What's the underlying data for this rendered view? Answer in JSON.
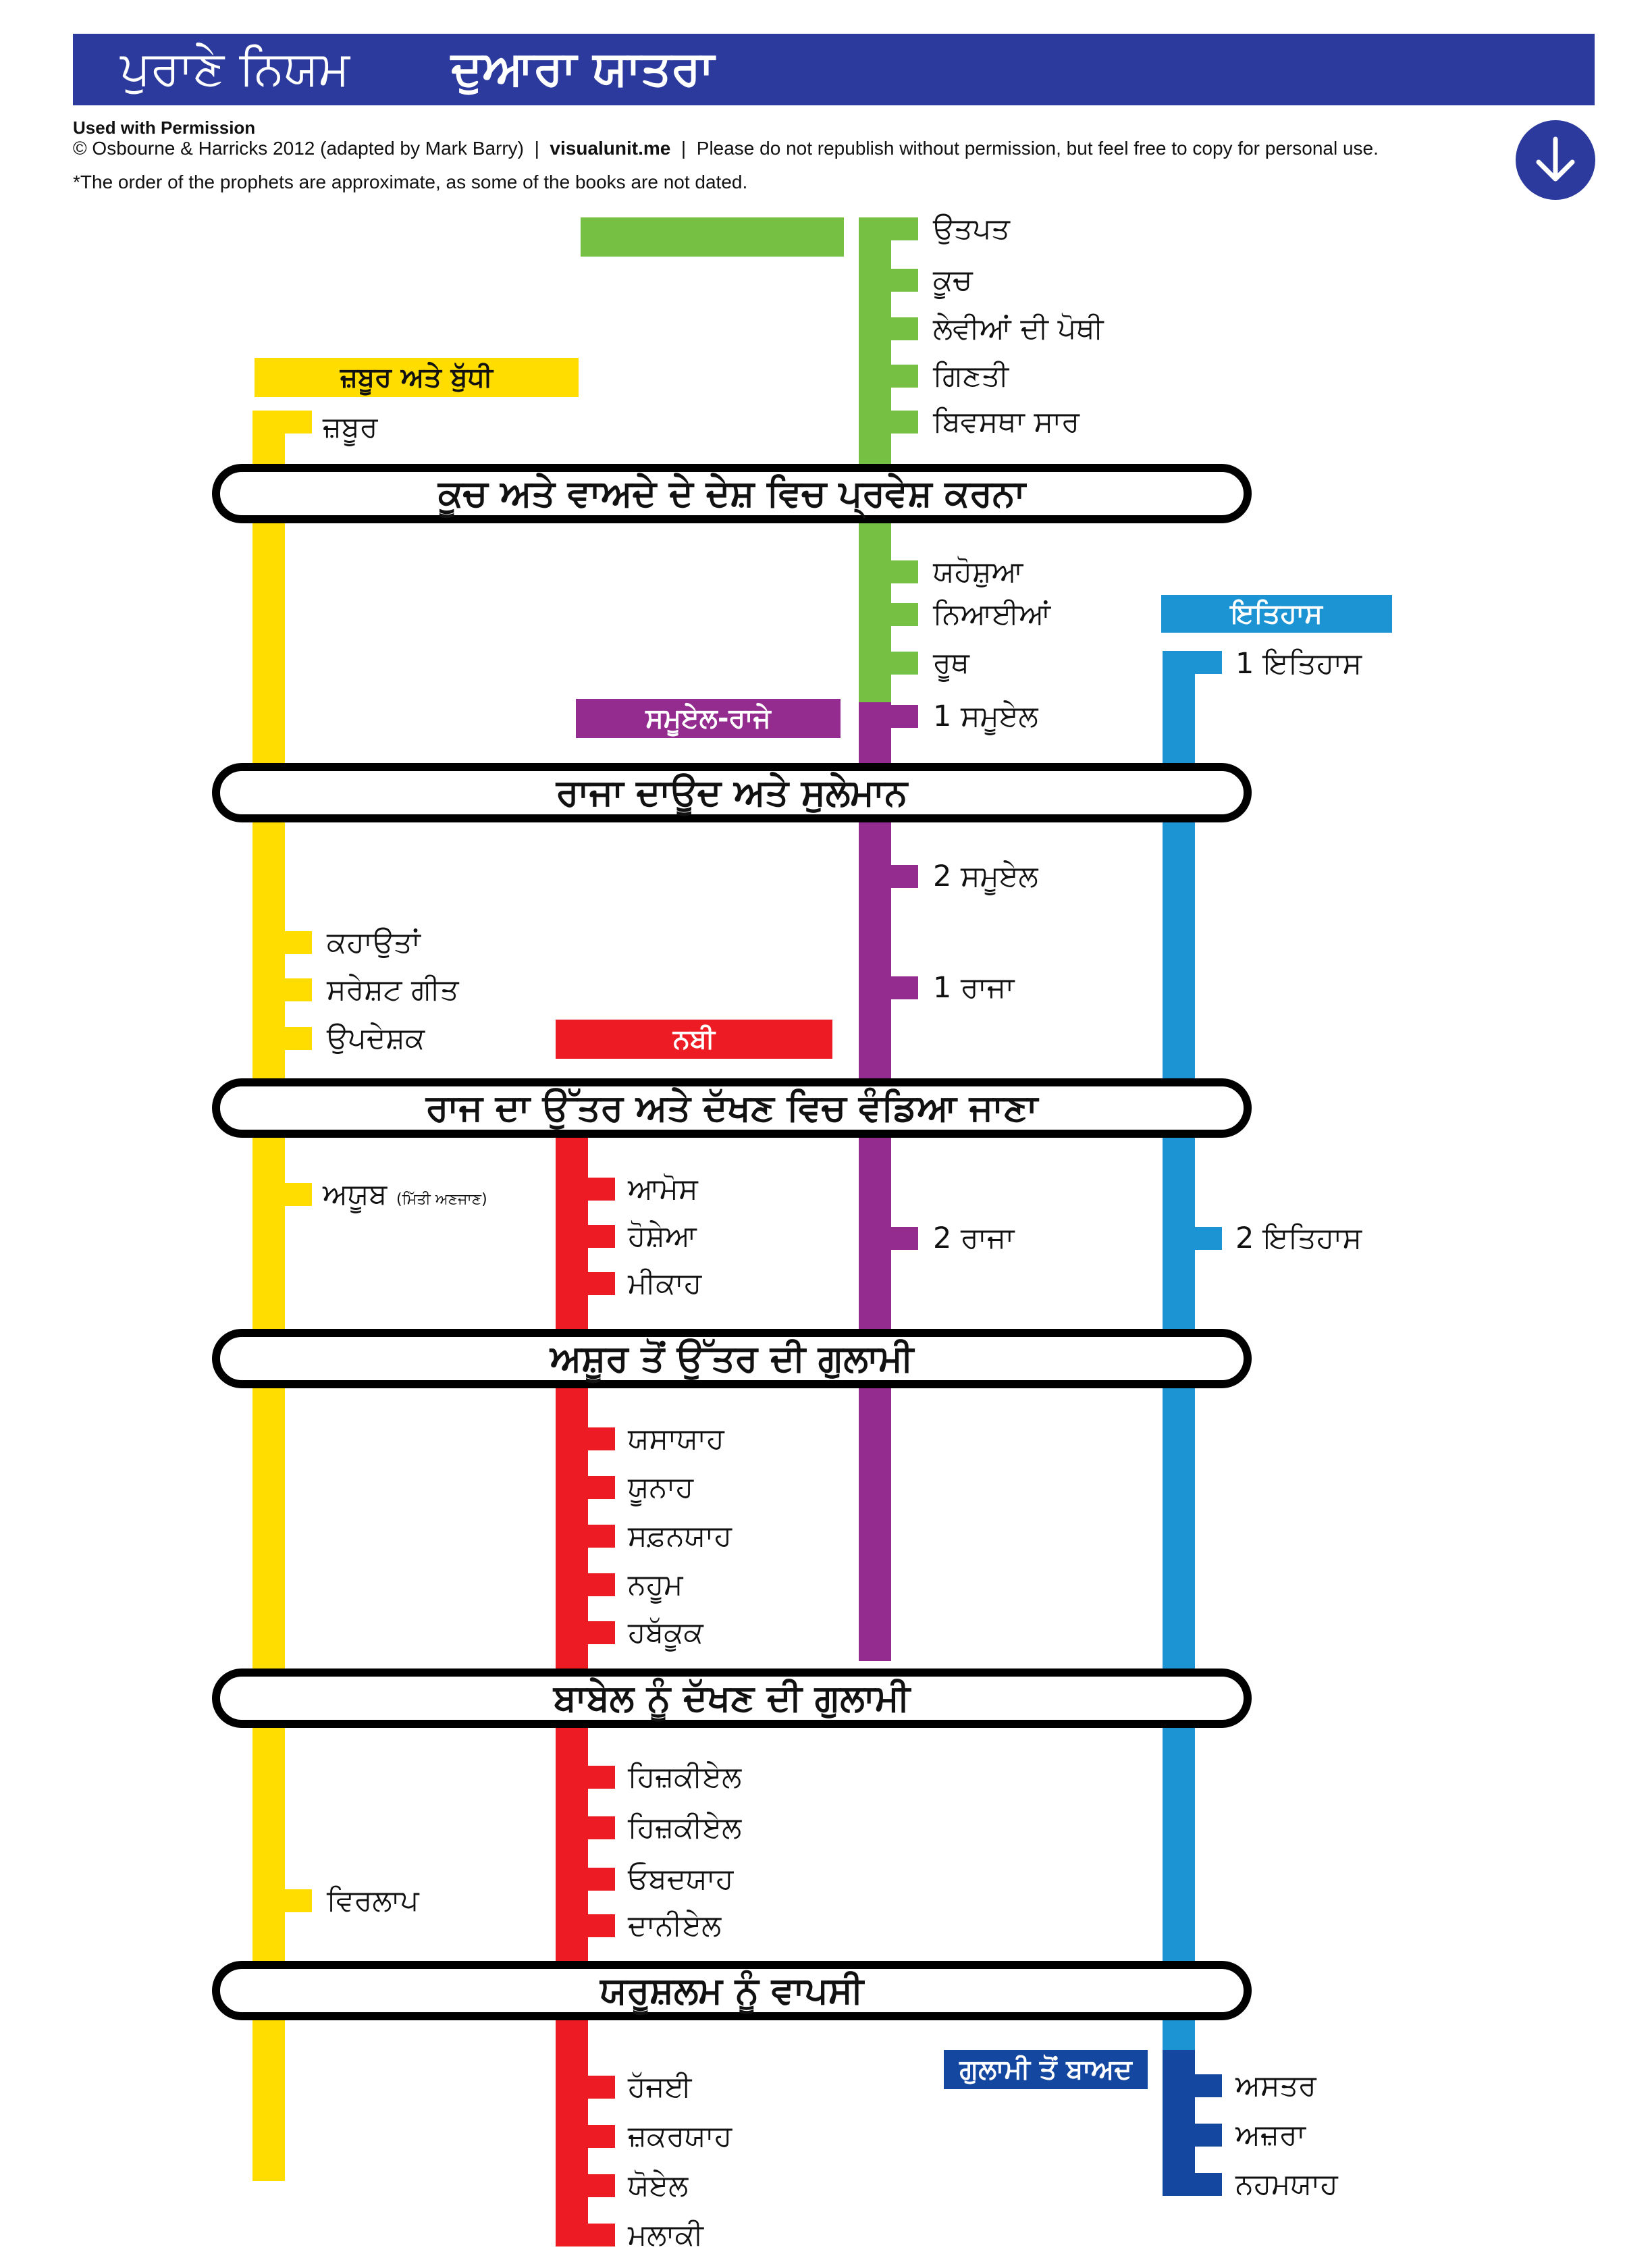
{
  "header": {
    "title_main": "ਪੁਰਾਣੇ ਨਿਯਮ",
    "title_sub": "ਦੁਆਰਾ ਯਾਤਰਾ"
  },
  "credits": {
    "used_permission": "Used with Permission",
    "copyright": "© Osbourne & Harricks 2012 (adapted by Mark Barry)",
    "separator": "|",
    "site": "visualunit.me",
    "notice": "Please do not republish without permission, but feel free to copy for personal use.",
    "prophet_note": "*The order of the prophets are approximate, as some of the books are not dated."
  },
  "down_button": {
    "icon": "arrow-down-icon"
  },
  "colors": {
    "header": "#2b3a9c",
    "law_history": "#76c043",
    "wisdom": "#ffdd00",
    "samuel_kings": "#932c8e",
    "prophets": "#ed1c24",
    "chronicles": "#1c93d2",
    "post_exile": "#1447a0",
    "event_border": "#000000"
  },
  "sections": {
    "law": "",
    "wisdom": "ਜ਼ਬੂਰ ਅਤੇ ਬੁੱਧੀ",
    "chronicles": "ਇਤਿਹਾਸ",
    "samuel_kings": "ਸਮੂਏਲ-ਰਾਜੇ",
    "prophets": "ਨਬੀ",
    "post_exile": "ਗੁਲਾਮੀ ਤੋਂ ਬਾਅਦ"
  },
  "events": [
    "ਕੂਚ ਅਤੇ ਵਾਅਦੇ ਦੇ ਦੇਸ਼ ਵਿਚ ਪ੍ਰਵੇਸ਼ ਕਰਨਾ",
    "ਰਾਜਾ ਦਾਊਦ ਅਤੇ ਸੁਲੇਮਾਨ",
    "ਰਾਜ ਦਾ ਉੱਤਰ ਅਤੇ ਦੱਖਣ ਵਿਚ ਵੰਡਿਆ ਜਾਣਾ",
    "ਅਸ਼ੂਰ ਤੋਂ ਉੱਤਰ ਦੀ ਗੁਲਾਮੀ",
    "ਬਾਬੇਲ ਨੂੰ ਦੱਖਣ ਦੀ ਗੁਲਾਮੀ",
    "ਯਰੂਸ਼ਲਮ ਨੂੰ ਵਾਪਸੀ"
  ],
  "books": {
    "law_history": [
      "ਉਤਪਤ",
      "ਕੂਚ",
      "ਲੇਵੀਆਂ ਦੀ ਪੋਥੀ",
      "ਗਿਣਤੀ",
      "ਬਿਵਸਥਾ ਸਾਰ",
      "ਯਹੋਸ਼ੁਆ",
      "ਨਿਆਈਆਂ",
      "ਰੂਥ"
    ],
    "wisdom": [
      "ਜ਼ਬੂਰ",
      "ਕਹਾਉਤਾਂ",
      "ਸਰੇਸ਼ਟ ਗੀਤ",
      "ਉਪਦੇਸ਼ਕ",
      "ਅਯੂਬ",
      "ਵਿਰਲਾਪ"
    ],
    "job_note": "(ਮਿੱਤੀ ਅਣਜਾਣ)",
    "samuel_kings": [
      "1 ਸਮੂਏਲ",
      "2 ਸਮੂਏਲ",
      "1 ਰਾਜਾ",
      "2 ਰਾਜਾ"
    ],
    "chronicles": [
      "1 ਇਤਿਹਾਸ",
      "2 ਇਤਿਹਾਸ"
    ],
    "prophets": [
      "ਆਮੋਸ",
      "ਹੋਸ਼ੇਆ",
      "ਮੀਕਾਹ",
      "ਯਸਾਯਾਹ",
      "ਯੂਨਾਹ",
      "ਸਫ਼ਨਯਾਹ",
      "ਨਹੂਮ",
      "ਹਬੱਕੂਕ",
      "ਹਿਜ਼ਕੀਏਲ",
      "ਹਿਜ਼ਕੀਏਲ",
      "ਓਬਦਯਾਹ",
      "ਦਾਨੀਏਲ",
      "ਹੱਜਈ",
      "ਜ਼ਕਰਯਾਹ",
      "ਯੋਏਲ",
      "ਮਲਾਕੀ"
    ],
    "post_exile": [
      "ਅਸਤਰ",
      "ਅਜ਼ਰਾ",
      "ਨਹਮਯਾਹ"
    ]
  }
}
